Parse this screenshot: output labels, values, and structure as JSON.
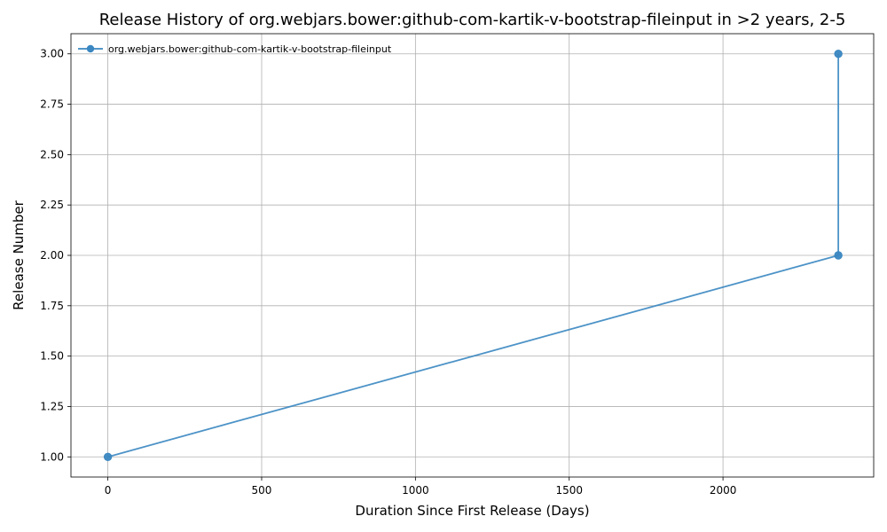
{
  "chart_data": {
    "type": "line",
    "title": "Release History of org.webjars.bower:github-com-kartik-v-bootstrap-fileinput in >2 years, 2-5",
    "xlabel": "Duration Since First Release (Days)",
    "ylabel": "Release Number",
    "xlim": [
      -120,
      2490
    ],
    "ylim": [
      0.9,
      3.1
    ],
    "xticks": [
      0,
      500,
      1000,
      1500,
      2000
    ],
    "xtick_labels": [
      "0",
      "500",
      "1000",
      "1500",
      "2000"
    ],
    "yticks": [
      1.0,
      1.25,
      1.5,
      1.75,
      2.0,
      2.25,
      2.5,
      2.75,
      3.0
    ],
    "ytick_labels": [
      "1.00",
      "1.25",
      "1.50",
      "1.75",
      "2.00",
      "2.25",
      "2.50",
      "2.75",
      "3.00"
    ],
    "grid": true,
    "legend_position": "top-left",
    "series": [
      {
        "name": "org.webjars.bower:github-com-kartik-v-bootstrap-fileinput",
        "color": "#3a87c1",
        "marker": "circle",
        "x": [
          0,
          2375,
          2375
        ],
        "y": [
          1,
          2,
          3
        ]
      }
    ]
  }
}
